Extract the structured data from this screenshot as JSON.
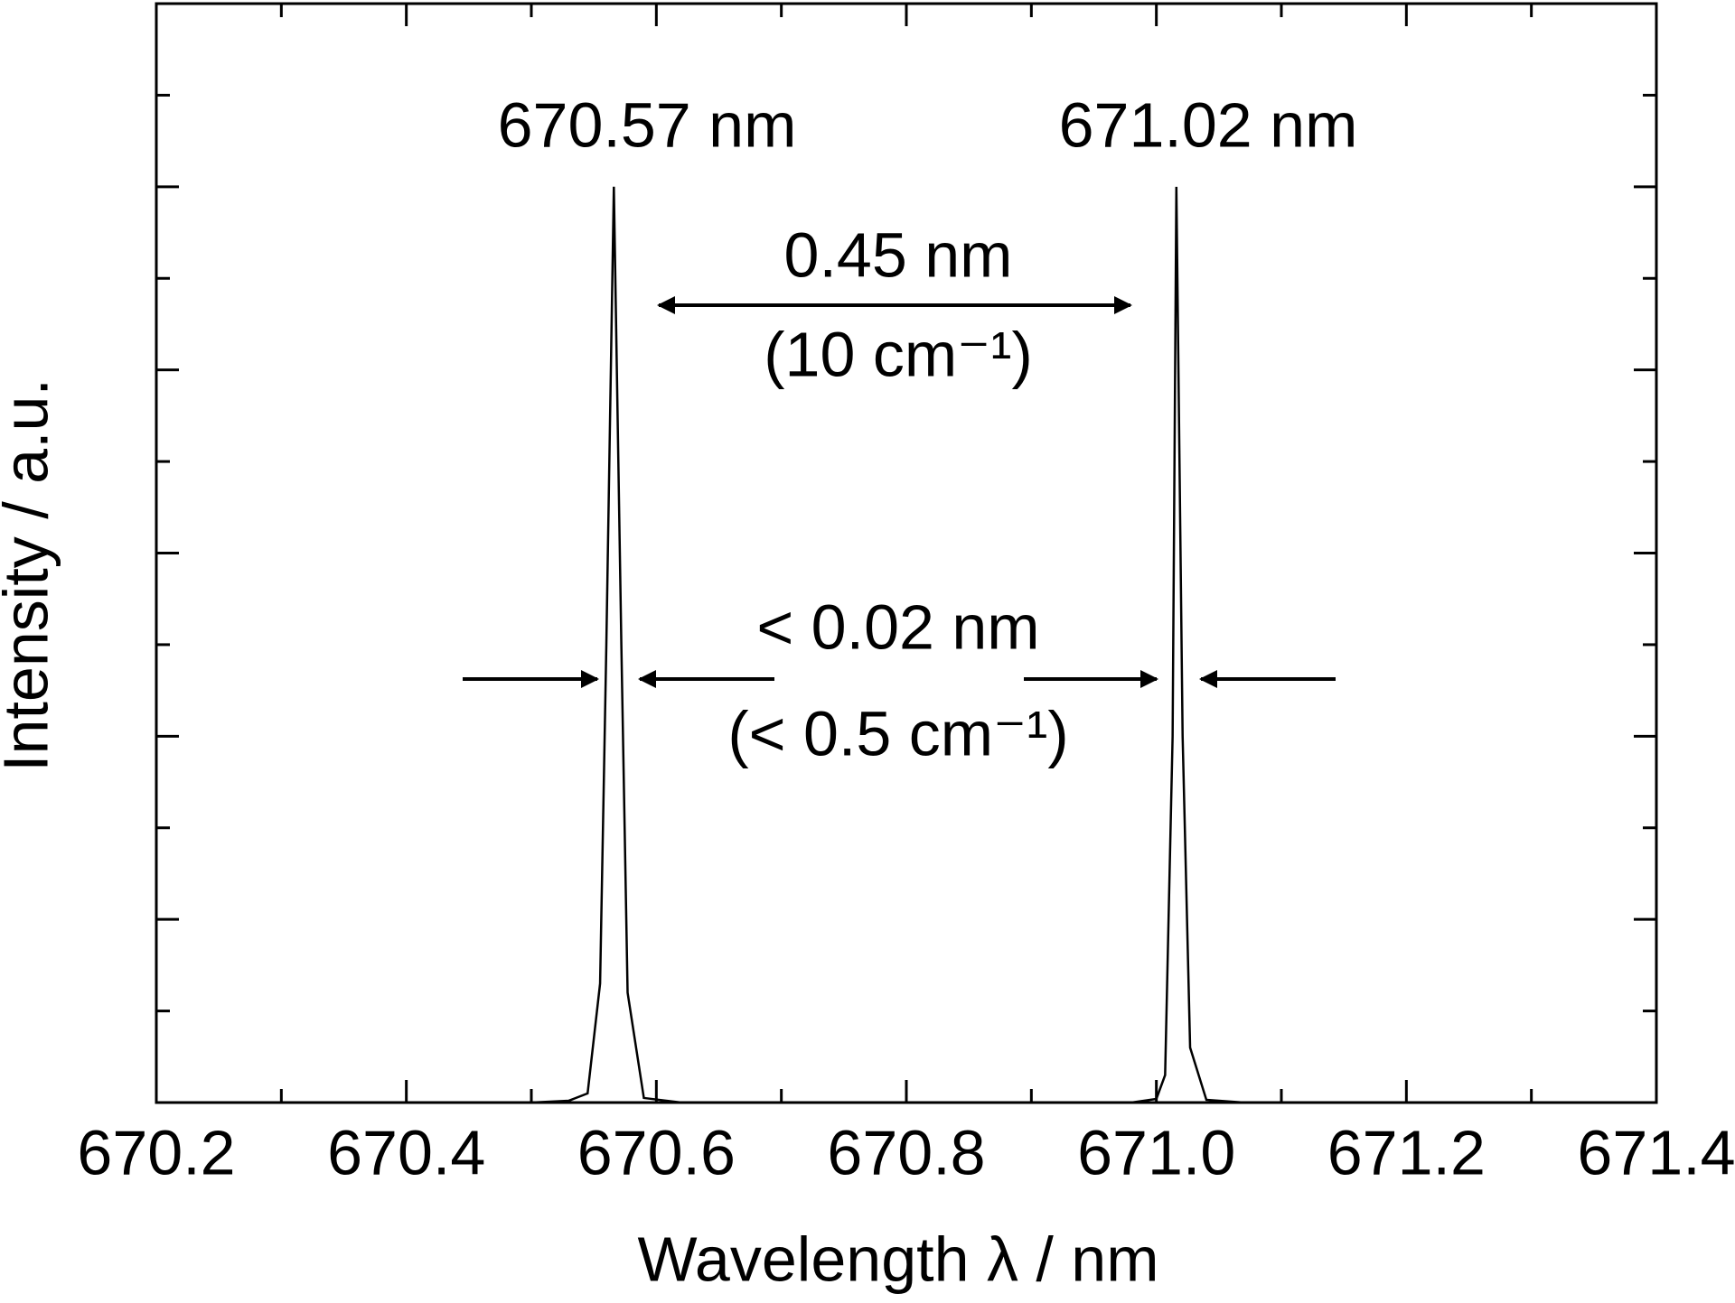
{
  "chart_data": {
    "type": "line",
    "xlabel": "Wavelength λ / nm",
    "ylabel": "Intensity / a.u.",
    "x": [
      670.2,
      670.5,
      670.53,
      670.545,
      670.555,
      670.56,
      670.566,
      670.572,
      670.577,
      670.59,
      670.62,
      670.98,
      671.0,
      671.007,
      671.013,
      671.016,
      671.021,
      671.027,
      671.04,
      671.07,
      671.4
    ],
    "values": [
      0,
      0,
      0.002,
      0.01,
      0.13,
      0.5,
      1.0,
      0.5,
      0.12,
      0.005,
      0,
      0,
      0.004,
      0.03,
      0.4,
      1.0,
      0.4,
      0.06,
      0.003,
      0,
      0
    ],
    "color": "#000000",
    "xlim": [
      670.2,
      671.4
    ],
    "xticks": [
      670.2,
      670.4,
      670.6,
      670.8,
      {
        "value": 671,
        "label": "671.0"
      },
      671.2,
      671.4
    ],
    "xminor_ticks": [
      670.3,
      670.5,
      670.7,
      670.9,
      671.1,
      671.3
    ],
    "ylim": [
      0,
      1.2
    ],
    "yticks": [
      0,
      0.2,
      0.4,
      0.6,
      0.8,
      1.0,
      1.2
    ],
    "yminor_ticks": [
      0.1,
      0.3,
      0.5,
      0.7,
      0.9,
      1.1
    ],
    "ytick_labels_shown": false,
    "annotations": [
      "670.57 nm",
      "671.02 nm",
      "0.45 nm",
      "(10 cm⁻¹)",
      "< 0.02 nm",
      "(< 0.5 cm⁻¹)"
    ]
  }
}
